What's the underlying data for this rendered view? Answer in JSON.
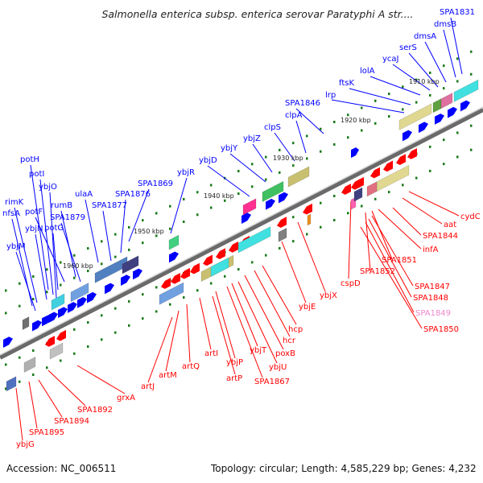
{
  "title": "Salmonella enterica subsp. enterica serovar Paratyphi A str....",
  "accession": "Accession: NC_006511",
  "summary": "Topology: circular; Length: 4,585,229 bp; Genes: 4,232",
  "scale_labels": [
    "1910 kbp",
    "1920 kbp",
    "1930 kbp",
    "1940 kbp",
    "1950 kbp",
    "1960 kbp"
  ],
  "forward_genes": [
    "SPA1831",
    "dmsB",
    "dmsA",
    "serS",
    "ycaJ",
    "lolA",
    "lrp",
    "ftsK",
    "SPA1846",
    "clpA",
    "clpS",
    "ybjZ",
    "ybjY",
    "ybjD",
    "ybjR",
    "SPA1869",
    "SPA1876",
    "SPA1877",
    "ulaA",
    "SPA1879",
    "rumB",
    "potF",
    "potG",
    "potH",
    "potI",
    "ybjO",
    "ybjN",
    "rimK",
    "nfsA",
    "ybjM"
  ],
  "reverse_genes": [
    "cydC",
    "aat",
    "SPA1844",
    "infA",
    "SPA1851",
    "SPA1852",
    "SPA1847",
    "SPA1848",
    "SPA1849",
    "SPA1850",
    "cspD",
    "ybjX",
    "ybjE",
    "hcp",
    "hcr",
    "poxB",
    "ybjU",
    "ybjT",
    "SPA1867",
    "ybjP",
    "artP",
    "artI",
    "artQ",
    "artM",
    "artJ",
    "grxA",
    "SPA1892",
    "SPA1894",
    "SPA1895",
    "ybjG"
  ],
  "colors": {
    "forward": "#0000ff",
    "reverse": "#ff0000",
    "backbone": "#888888",
    "tick": "#1a7a1a",
    "pseudo": "#ee88cc"
  }
}
